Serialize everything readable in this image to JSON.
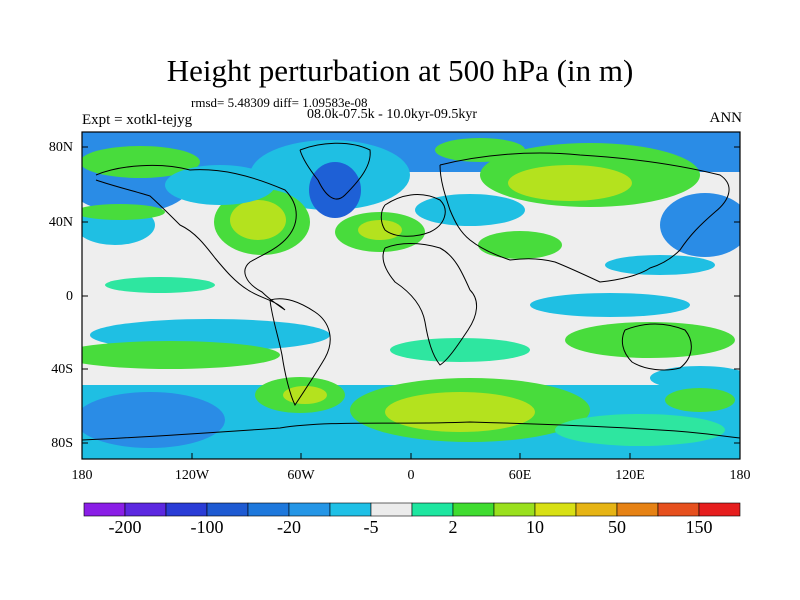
{
  "title": "Height perturbation at 500 hPa (in m)",
  "stats_line": "rmsd= 5.48309 diff= 1.09583e-08",
  "period": "08.0k-07.5k - 10.0kyr-09.5kyr",
  "experiment": "Expt = xotkl-tejyg",
  "season": "ANN",
  "lat_ticks": [
    "80N",
    "40N",
    "0",
    "40S",
    "80S"
  ],
  "lon_ticks": [
    "180",
    "120W",
    "60W",
    "0",
    "60E",
    "120E",
    "180"
  ],
  "colorbar": {
    "labels": [
      "-200",
      "-100",
      "-20",
      "-5",
      "2",
      "10",
      "50",
      "150"
    ],
    "colors": [
      "#8a1ee6",
      "#5c28e0",
      "#2a3cd6",
      "#1e5ad2",
      "#1e78dc",
      "#2596e6",
      "#1fc0e6",
      "#ececec",
      "#1ee6a0",
      "#40dc30",
      "#9ae01e",
      "#d8e014",
      "#e6b414",
      "#e68214",
      "#e6501e",
      "#e61e1e"
    ]
  },
  "field_colors": {
    "neutral": "#eeeeee",
    "deep_blue": "#1e60d6",
    "blue": "#2a8ce6",
    "cyan": "#1fbfe3",
    "light_green": "#2ee6a0",
    "green": "#48dc3c",
    "yellow_green": "#b4e21e",
    "coast": "#000000"
  }
}
